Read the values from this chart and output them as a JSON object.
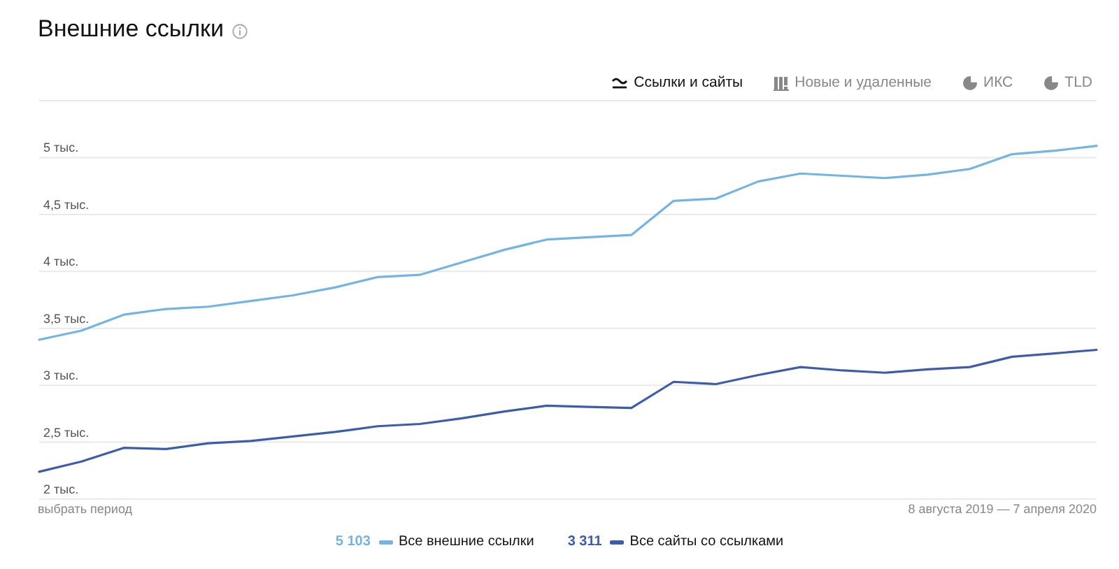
{
  "chart_data": {
    "type": "line",
    "title": "Внешние ссылки",
    "categories": [
      null,
      null,
      null,
      null,
      null,
      null,
      null,
      null,
      null,
      null,
      null,
      null,
      null,
      null,
      null,
      null,
      null,
      null,
      null,
      null,
      null,
      null,
      null,
      null,
      null,
      null
    ],
    "series": [
      {
        "name": "Все внешние ссылки",
        "color": "#74b4e4",
        "values": [
          3.4,
          3.48,
          3.62,
          3.67,
          3.69,
          3.74,
          3.79,
          3.86,
          3.95,
          3.97,
          4.08,
          4.19,
          4.28,
          4.3,
          4.32,
          4.62,
          4.64,
          4.79,
          4.86,
          4.84,
          4.82,
          4.85,
          4.9,
          5.03,
          5.06,
          5.103
        ]
      },
      {
        "name": "Все сайты со ссылками",
        "color": "#3d5cab",
        "values": [
          2.24,
          2.33,
          2.45,
          2.44,
          2.49,
          2.51,
          2.55,
          2.59,
          2.64,
          2.66,
          2.71,
          2.77,
          2.82,
          2.81,
          2.8,
          3.03,
          3.01,
          3.09,
          3.16,
          3.13,
          3.11,
          3.14,
          3.16,
          3.25,
          3.28,
          3.311
        ]
      }
    ],
    "ylim": [
      2,
      5.5
    ],
    "yticks": [
      {
        "value": 2,
        "label": "2 тыс."
      },
      {
        "value": 2.5,
        "label": "2,5 тыс."
      },
      {
        "value": 3,
        "label": "3 тыс."
      },
      {
        "value": 3.5,
        "label": "3,5 тыс."
      },
      {
        "value": 4,
        "label": "4 тыс."
      },
      {
        "value": 4.5,
        "label": "4,5 тыс."
      },
      {
        "value": 5,
        "label": "5 тыс."
      },
      {
        "value": 5.5,
        "label": null
      }
    ],
    "tick_labels": "y",
    "grid": "y",
    "legend": "bottom",
    "annotations": [
      "5 103",
      "3 311",
      "Ссылки и сайты",
      "Новые и удаленные",
      "ИКС",
      "TLD",
      "выбрать период",
      "8 августа 2019 — 7 апреля 2020"
    ]
  }
}
